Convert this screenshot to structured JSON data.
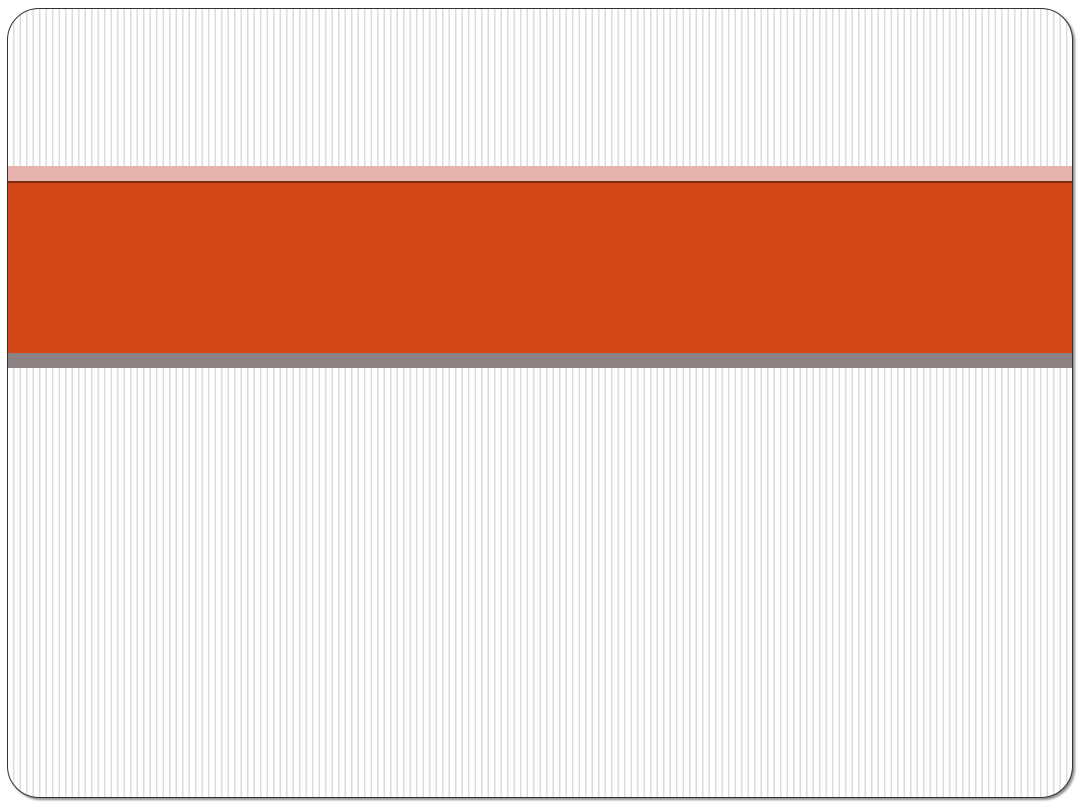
{
  "theme": {
    "accent_band_color": "#D24817",
    "top_stripe_color": "#E6B3AE",
    "divider_line_color": "#7A2A10",
    "bottom_stripe_color": "#8C8283",
    "background_stripe_color": "#DCDCDC"
  }
}
